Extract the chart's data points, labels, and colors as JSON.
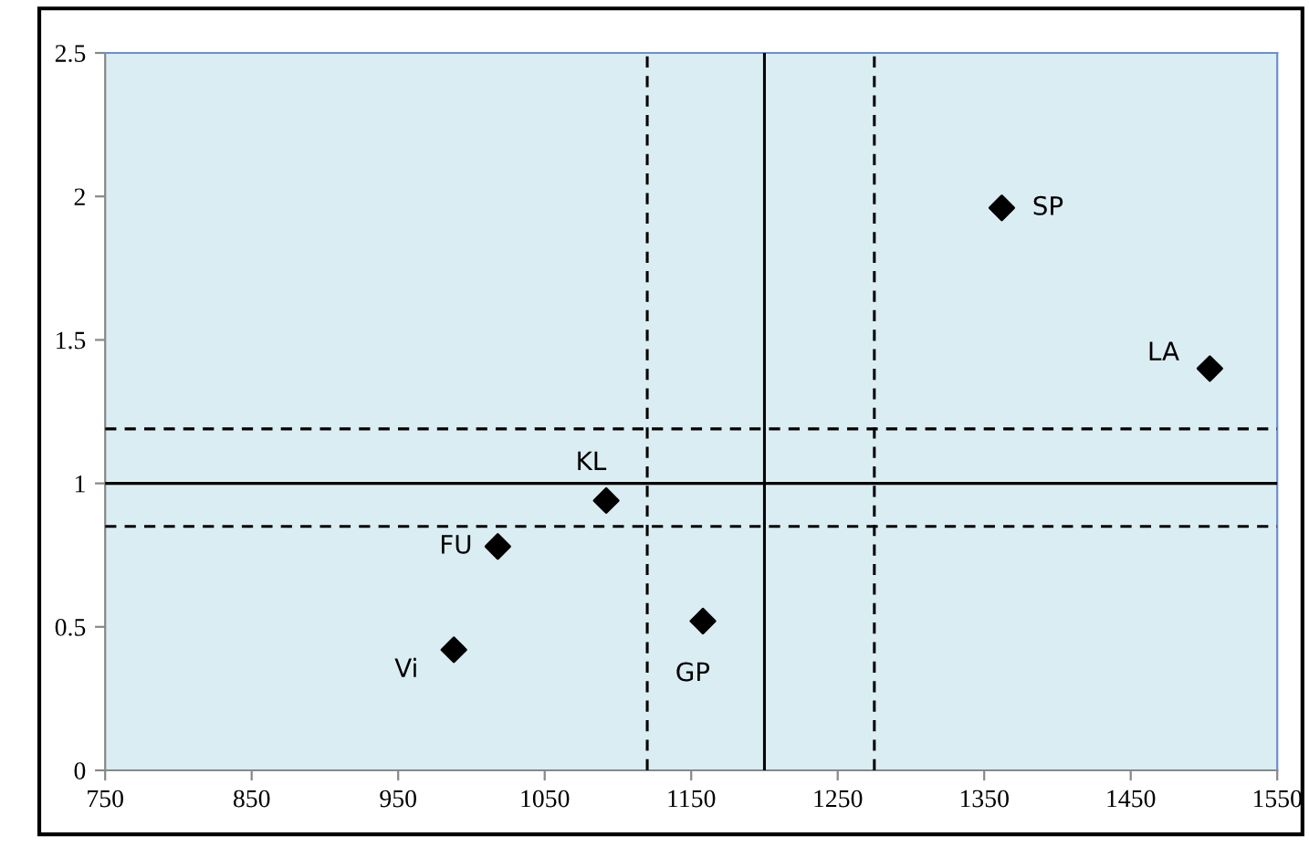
{
  "chart_data": {
    "type": "scatter",
    "marker": "diamond",
    "grid": false,
    "legend": false,
    "x": [
      1362,
      1504,
      1092,
      1018,
      988,
      1158
    ],
    "values": [
      1.96,
      1.4,
      0.94,
      0.78,
      0.42,
      0.52
    ],
    "color": "#000000",
    "xlim": [
      750,
      1550
    ],
    "xticks": [
      750,
      850,
      950,
      1050,
      1150,
      1250,
      1350,
      1450,
      1550
    ],
    "ylim": [
      0,
      2.5
    ],
    "yticks": [
      0,
      0.5,
      1,
      1.5,
      2,
      2.5
    ],
    "ref_lines": [
      {
        "axis": "x",
        "value": 1200,
        "color": "#000000",
        "line_style": "solid"
      },
      {
        "axis": "x",
        "value": 1120,
        "color": "#000000",
        "line_style": "dashed"
      },
      {
        "axis": "x",
        "value": 1275,
        "color": "#000000",
        "line_style": "dashed"
      },
      {
        "axis": "y",
        "value": 1,
        "color": "#000000",
        "line_style": "solid"
      },
      {
        "axis": "y",
        "value": 1.19,
        "color": "#000000",
        "line_style": "dashed"
      },
      {
        "axis": "y",
        "value": 0.85,
        "color": "#000000",
        "line_style": "dashed"
      }
    ],
    "annotations": [
      {
        "text": "SP",
        "x": 1362,
        "y": 1.96
      },
      {
        "text": "LA",
        "x": 1504,
        "y": 1.4
      },
      {
        "text": "KL",
        "x": 1092,
        "y": 0.94
      },
      {
        "text": "FU",
        "x": 1018,
        "y": 0.78
      },
      {
        "text": "Vi",
        "x": 988,
        "y": 0.42
      },
      {
        "text": "GP",
        "x": 1158,
        "y": 0.52
      }
    ]
  }
}
